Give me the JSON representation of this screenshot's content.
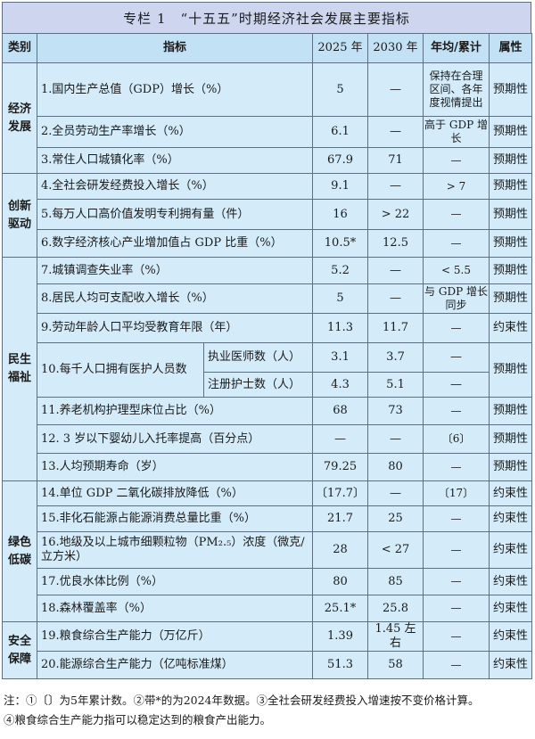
{
  "title": "专栏 1　“十五五”时期经济社会发展主要指标",
  "headers": {
    "category": "类别",
    "indicator": "指标",
    "y2025": "2025 年",
    "y2030": "2030 年",
    "annual": "年均/累计",
    "attribute": "属性"
  },
  "categories": [
    "经济发展",
    "创新驱动",
    "民生福祉",
    "绿色低碳",
    "安全保障"
  ],
  "rows": [
    {
      "indicator": "1.国内生产总值（GDP）增长（%）",
      "y2025": "5",
      "y2030": "—",
      "annual": "保持在合理区间、各年度视情提出",
      "attribute": "预期性"
    },
    {
      "indicator": "2.全员劳动生产率增长（%）",
      "y2025": "6.1",
      "y2030": "—",
      "annual": "高于 GDP 增长",
      "attribute": "预期性"
    },
    {
      "indicator": "3.常住人口城镇化率（%）",
      "y2025": "67.9",
      "y2030": "71",
      "annual": "—",
      "attribute": "预期性"
    },
    {
      "indicator": "4.全社会研发经费投入增长（%）",
      "y2025": "9.1",
      "y2030": "—",
      "annual": "> 7",
      "attribute": "预期性"
    },
    {
      "indicator": "5.每万人口高价值发明专利拥有量（件）",
      "y2025": "16",
      "y2030": "> 22",
      "annual": "—",
      "attribute": "预期性"
    },
    {
      "indicator": "6.数字经济核心产业增加值占 GDP 比重（%）",
      "y2025": "10.5*",
      "y2030": "12.5",
      "annual": "—",
      "attribute": "预期性"
    },
    {
      "indicator": "7.城镇调查失业率（%）",
      "y2025": "5.2",
      "y2030": "—",
      "annual": "< 5.5",
      "attribute": "预期性"
    },
    {
      "indicator": "8.居民人均可支配收入增长（%）",
      "y2025": "5",
      "y2030": "—",
      "annual": "与 GDP 增长同步",
      "attribute": "预期性"
    },
    {
      "indicator": "9.劳动年龄人口平均受教育年限（年）",
      "y2025": "11.3",
      "y2030": "11.7",
      "annual": "—",
      "attribute": "约束性"
    },
    {
      "indicator": "10.每千人口拥有医护人员数",
      "attribute": "预期性",
      "sub": [
        {
          "label": "执业医师数（人）",
          "y2025": "3.1",
          "y2030": "3.7",
          "annual": "—"
        },
        {
          "label": "注册护士数（人）",
          "y2025": "4.3",
          "y2030": "5.1",
          "annual": "—"
        }
      ]
    },
    {
      "indicator": "11.养老机构护理型床位占比（%）",
      "y2025": "68",
      "y2030": "73",
      "annual": "—",
      "attribute": "预期性"
    },
    {
      "indicator": "12. 3 岁以下婴幼儿入托率提高（百分点）",
      "y2025": "—",
      "y2030": "—",
      "annual": "〔6〕",
      "attribute": "预期性"
    },
    {
      "indicator": "13.人均预期寿命（岁）",
      "y2025": "79.25",
      "y2030": "80",
      "annual": "—",
      "attribute": "预期性"
    },
    {
      "indicator": "14.单位 GDP 二氧化碳排放降低（%）",
      "y2025": "〔17.7〕",
      "y2030": "—",
      "annual": "〔17〕",
      "attribute": "约束性"
    },
    {
      "indicator": "15.非化石能源占能源消费总量比重（%）",
      "y2025": "21.7",
      "y2030": "25",
      "annual": "—",
      "attribute": "约束性"
    },
    {
      "indicator": "16.地级及以上城市细颗粒物（PM₂.₅）浓度（微克/立方米）",
      "y2025": "28",
      "y2030": "< 27",
      "annual": "—",
      "attribute": "约束性"
    },
    {
      "indicator": "17.优良水体比例（%）",
      "y2025": "80",
      "y2030": "85",
      "annual": "—",
      "attribute": "约束性"
    },
    {
      "indicator": "18.森林覆盖率（%）",
      "y2025": "25.1*",
      "y2030": "25.8",
      "annual": "—",
      "attribute": "约束性"
    },
    {
      "indicator": "19.粮食综合生产能力（万亿斤）",
      "y2025": "1.39",
      "y2030": "1.45 左右",
      "annual": "—",
      "attribute": "约束性"
    },
    {
      "indicator": "20.能源综合生产能力（亿吨标准煤）",
      "y2025": "51.3",
      "y2030": "58",
      "annual": "—",
      "attribute": "约束性"
    }
  ],
  "notes": [
    "注：①〔〕为5年累计数。②带*的为2024年数据。③全社会研发经费投入增速按不变价格计算。",
    "④粮食综合生产能力指可以稳定达到的粮食产出能力。"
  ]
}
